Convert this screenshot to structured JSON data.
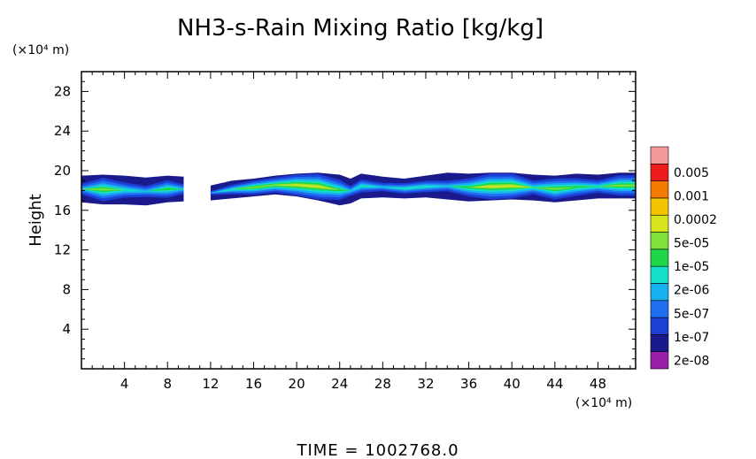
{
  "chart_data": {
    "type": "heatmap",
    "title": "NH3-s-Rain Mixing Ratio [kg/kg]",
    "ylabel": "Height",
    "x_unit": "(×10⁴ m)",
    "y_unit": "(×10⁴ m)",
    "xlim": [
      0,
      51.5
    ],
    "ylim": [
      0,
      30
    ],
    "x_ticks": [
      "4",
      "8",
      "12",
      "16",
      "20",
      "24",
      "28",
      "32",
      "36",
      "40",
      "44",
      "48"
    ],
    "x_tick_values": [
      4,
      8,
      12,
      16,
      20,
      24,
      28,
      32,
      36,
      40,
      44,
      48
    ],
    "y_ticks": [
      "4",
      "8",
      "12",
      "16",
      "20",
      "24",
      "28"
    ],
    "y_tick_values": [
      4,
      8,
      12,
      16,
      20,
      24,
      28
    ],
    "footer": "TIME = 1002768.0",
    "colorbar": {
      "labels": [
        "0.005",
        "0.001",
        "0.0002",
        "5e-05",
        "1e-05",
        "2e-06",
        "5e-07",
        "1e-07",
        "2e-08"
      ],
      "colors": [
        "#9b1fa8",
        "#1a1a8c",
        "#1c3fd6",
        "#1f6ff0",
        "#17b0f0",
        "#13e0c8",
        "#1fd64a",
        "#7ee23a",
        "#d8e41c",
        "#f5c400",
        "#f57a00",
        "#ee1c1c",
        "#f59a9a"
      ]
    },
    "layer": {
      "x": [
        0,
        2,
        4,
        6,
        8,
        9.5,
        10.5,
        12,
        14,
        16,
        18,
        20,
        22,
        24,
        25,
        26,
        28,
        30,
        32,
        34,
        36,
        38,
        40,
        42,
        44,
        46,
        48,
        50,
        51.5
      ],
      "top": [
        19.5,
        19.6,
        19.5,
        19.3,
        19.5,
        19.4,
        0,
        18.5,
        19,
        19.2,
        19.5,
        19.7,
        19.8,
        19.6,
        19.2,
        19.7,
        19.4,
        19.2,
        19.5,
        19.8,
        19.7,
        19.8,
        19.8,
        19.6,
        19.5,
        19.7,
        19.6,
        19.8,
        19.8
      ],
      "bottom": [
        16.8,
        16.6,
        16.6,
        16.5,
        16.8,
        16.9,
        0,
        17.0,
        17.2,
        17.4,
        17.6,
        17.4,
        17.0,
        16.5,
        16.7,
        17.2,
        17.3,
        17.2,
        17.3,
        17.1,
        16.9,
        17.0,
        17.1,
        17.0,
        16.8,
        17.0,
        17.2,
        17.2,
        17.2
      ],
      "core": [
        2,
        5,
        3,
        2,
        4,
        2,
        0,
        1,
        3,
        5,
        5,
        6,
        6,
        4,
        2,
        3,
        2,
        3,
        3,
        2,
        4,
        6,
        6,
        3,
        5,
        4,
        3,
        5,
        5
      ]
    }
  }
}
